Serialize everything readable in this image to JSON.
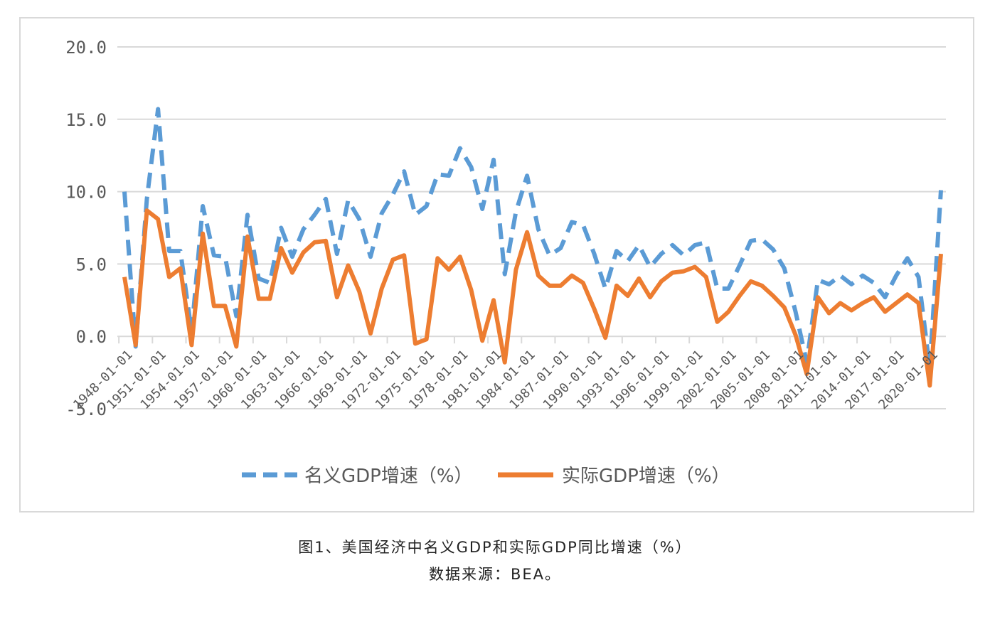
{
  "chart_data": {
    "type": "line",
    "title": "",
    "xlabel": "",
    "ylabel": "",
    "ylim": [
      -5,
      20
    ],
    "yticks": [
      "20.0",
      "15.0",
      "10.0",
      "5.0",
      "0.0",
      "-5.0"
    ],
    "grid": true,
    "legend_position": "bottom",
    "x_tick_labels": [
      "1948-01-01",
      "1951-01-01",
      "1954-01-01",
      "1957-01-01",
      "1960-01-01",
      "1963-01-01",
      "1966-01-01",
      "1969-01-01",
      "1972-01-01",
      "1975-01-01",
      "1978-01-01",
      "1981-01-01",
      "1984-01-01",
      "1987-01-01",
      "1990-01-01",
      "1993-01-01",
      "1996-01-01",
      "1999-01-01",
      "2002-01-01",
      "2005-01-01",
      "2008-01-01",
      "2011-01-01",
      "2014-01-01",
      "2017-01-01",
      "2020-01-01"
    ],
    "x": [
      1948,
      1949,
      1950,
      1951,
      1952,
      1953,
      1954,
      1955,
      1956,
      1957,
      1958,
      1959,
      1960,
      1961,
      1962,
      1963,
      1964,
      1965,
      1966,
      1967,
      1968,
      1969,
      1970,
      1971,
      1972,
      1973,
      1974,
      1975,
      1976,
      1977,
      1978,
      1979,
      1980,
      1981,
      1982,
      1983,
      1984,
      1985,
      1986,
      1987,
      1988,
      1989,
      1990,
      1991,
      1992,
      1993,
      1994,
      1995,
      1996,
      1997,
      1998,
      1999,
      2000,
      2001,
      2002,
      2003,
      2004,
      2005,
      2006,
      2007,
      2008,
      2009,
      2010,
      2011,
      2012,
      2013,
      2014,
      2015,
      2016,
      2017,
      2018,
      2019,
      2020,
      2021
    ],
    "series": [
      {
        "name": "名义GDP增速（%）",
        "color": "#5b9bd5",
        "dash": true,
        "values": [
          10.0,
          -0.7,
          9.5,
          15.7,
          5.9,
          5.9,
          0.3,
          9.0,
          5.6,
          5.5,
          1.4,
          8.4,
          4.0,
          3.7,
          7.5,
          5.5,
          7.4,
          8.4,
          9.5,
          5.7,
          9.4,
          8.1,
          5.5,
          8.5,
          9.8,
          11.4,
          8.4,
          9.0,
          11.2,
          11.1,
          13.0,
          11.7,
          8.8,
          12.2,
          4.3,
          8.6,
          11.1,
          7.4,
          5.6,
          6.1,
          7.9,
          7.7,
          5.7,
          3.3,
          5.9,
          5.2,
          6.3,
          4.8,
          5.7,
          6.3,
          5.6,
          6.3,
          6.5,
          3.3,
          3.3,
          4.9,
          6.6,
          6.7,
          6.0,
          4.7,
          1.7,
          -1.8,
          3.9,
          3.6,
          4.2,
          3.6,
          4.2,
          3.7,
          2.7,
          4.2,
          5.4,
          4.1,
          -2.2,
          10.1
        ]
      },
      {
        "name": "实际GDP增速（%）",
        "color": "#ed7d31",
        "dash": false,
        "values": [
          4.1,
          -0.6,
          8.7,
          8.1,
          4.1,
          4.7,
          -0.6,
          7.1,
          2.1,
          2.1,
          -0.7,
          6.9,
          2.6,
          2.6,
          6.1,
          4.4,
          5.8,
          6.5,
          6.6,
          2.7,
          4.9,
          3.1,
          0.2,
          3.3,
          5.3,
          5.6,
          -0.5,
          -0.2,
          5.4,
          4.6,
          5.5,
          3.2,
          -0.3,
          2.5,
          -1.8,
          4.6,
          7.2,
          4.2,
          3.5,
          3.5,
          4.2,
          3.7,
          1.9,
          -0.1,
          3.5,
          2.8,
          4.0,
          2.7,
          3.8,
          4.4,
          4.5,
          4.8,
          4.1,
          1.0,
          1.7,
          2.8,
          3.8,
          3.5,
          2.8,
          2.0,
          0.1,
          -2.6,
          2.7,
          1.6,
          2.3,
          1.8,
          2.3,
          2.7,
          1.7,
          2.3,
          2.9,
          2.3,
          -3.4,
          5.7
        ]
      }
    ]
  },
  "caption": {
    "line1": "图1、美国经济中名义GDP和实际GDP同比增速（%）",
    "line2": "数据来源：BEA。"
  }
}
